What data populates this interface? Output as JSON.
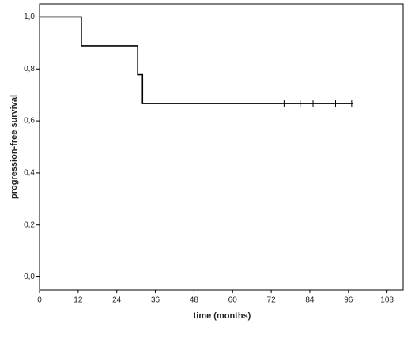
{
  "chart_data": {
    "type": "line",
    "x_label": "time (months)",
    "y_label": "progression-free survival",
    "x": [
      0,
      13,
      13,
      30.5,
      30.5,
      32,
      32,
      97.5
    ],
    "values": [
      1,
      1,
      0.889,
      0.889,
      0.778,
      0.778,
      0.667,
      0.667
    ],
    "color": "#000000",
    "censored": {
      "x": [
        76,
        81,
        85,
        92,
        97
      ],
      "values": [
        0.667,
        0.667,
        0.667,
        0.667,
        0.667
      ]
    },
    "xlim": [
      0,
      113
    ],
    "xticks": [
      0,
      12,
      24,
      36,
      48,
      60,
      72,
      84,
      96,
      108
    ],
    "ylim": [
      -0.05,
      1.05
    ],
    "yticks": [
      {
        "value": 0,
        "label": "0,0"
      },
      {
        "value": 0.2,
        "label": "0,2"
      },
      {
        "value": 0.4,
        "label": "0,4"
      },
      {
        "value": 0.6,
        "label": "0,6"
      },
      {
        "value": 0.8,
        "label": "0,8"
      },
      {
        "value": 1,
        "label": "1,0"
      }
    ],
    "grid": false
  }
}
